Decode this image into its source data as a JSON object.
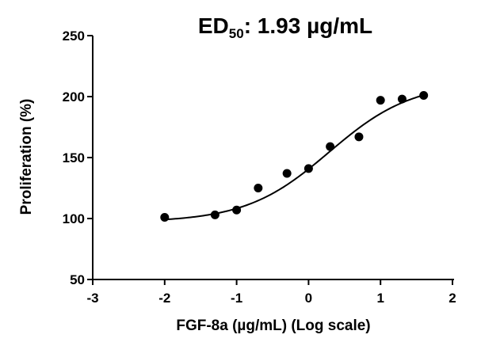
{
  "chart_data": {
    "type": "scatter",
    "title": {
      "prefix": "ED",
      "subscript": "50",
      "suffix": ": 1.93 µg/mL"
    },
    "xlabel": "FGF-8a (µg/mL) (Log scale)",
    "ylabel": "Proliferation (%)",
    "xlim": [
      -3,
      2
    ],
    "ylim": [
      50,
      250
    ],
    "xticks": [
      "-3",
      "-2",
      "-1",
      "0",
      "1",
      "2"
    ],
    "yticks": [
      "50",
      "100",
      "150",
      "200",
      "250"
    ],
    "x_scale": "log10",
    "grid": false,
    "legend": "none",
    "points": {
      "x": [
        -2.0,
        -1.3,
        -1.0,
        -0.7,
        -0.3,
        0.0,
        0.3,
        0.7,
        1.0,
        1.3,
        1.6
      ],
      "y": [
        101,
        103,
        107,
        125,
        137,
        141,
        159,
        167,
        197,
        198,
        201
      ]
    },
    "fit": {
      "model": "four-parameter logistic",
      "bottom": 97,
      "top": 212,
      "log_ed50": 0.286,
      "hill_slope": 0.75,
      "x_range": [
        -2.0,
        1.6
      ]
    }
  }
}
